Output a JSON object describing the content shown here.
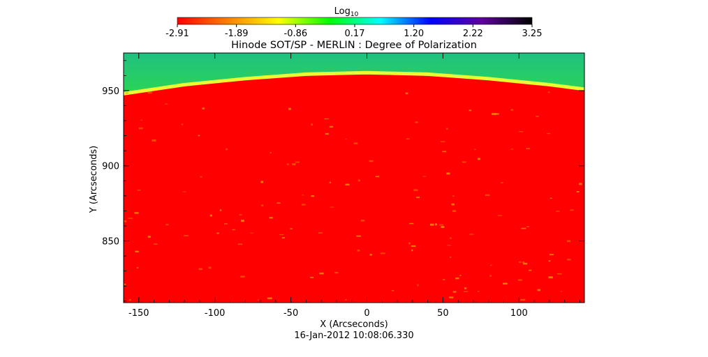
{
  "chart_data": {
    "type": "heatmap",
    "title": "Hinode SOT/SP - MERLIN : Degree of Polarization",
    "xlabel": "X (Arcseconds)",
    "ylabel": "Y (Arcseconds)",
    "timestamp": "16-Jan-2012 10:08:06.330",
    "xlim": [
      -160,
      143
    ],
    "ylim": [
      809,
      975
    ],
    "x_ticks": [
      {
        "value": -150,
        "label": "-150"
      },
      {
        "value": -100,
        "label": "-100"
      },
      {
        "value": -50,
        "label": "-50"
      },
      {
        "value": 0,
        "label": "0"
      },
      {
        "value": 50,
        "label": "50"
      },
      {
        "value": 100,
        "label": "100"
      }
    ],
    "y_ticks": [
      {
        "value": 850,
        "label": "850"
      },
      {
        "value": 900,
        "label": "900"
      },
      {
        "value": 950,
        "label": "950"
      }
    ],
    "limb": [
      {
        "x": -160,
        "y": 947
      },
      {
        "x": -120,
        "y": 953
      },
      {
        "x": -80,
        "y": 957
      },
      {
        "x": -40,
        "y": 960
      },
      {
        "x": 0,
        "y": 961
      },
      {
        "x": 40,
        "y": 960
      },
      {
        "x": 80,
        "y": 957
      },
      {
        "x": 120,
        "y": 953
      },
      {
        "x": 143,
        "y": 950
      }
    ],
    "colorbar": {
      "label": "Log",
      "label_subscript": "10",
      "min": -2.91,
      "max": 3.25,
      "tick_labels": [
        "-2.91",
        "-1.89",
        "-0.86",
        "0.17",
        "1.20",
        "2.22",
        "3.25"
      ],
      "colors": [
        "#ff0000",
        "#ff8000",
        "#ffff00",
        "#00ff00",
        "#00ffff",
        "#0000ff",
        "#6000a0",
        "#000000"
      ]
    },
    "disk_color": "#ff0000",
    "off_limb_colors": [
      "#ffff30",
      "#c0ff30",
      "#70ff30",
      "#30e040",
      "#20c080"
    ]
  }
}
